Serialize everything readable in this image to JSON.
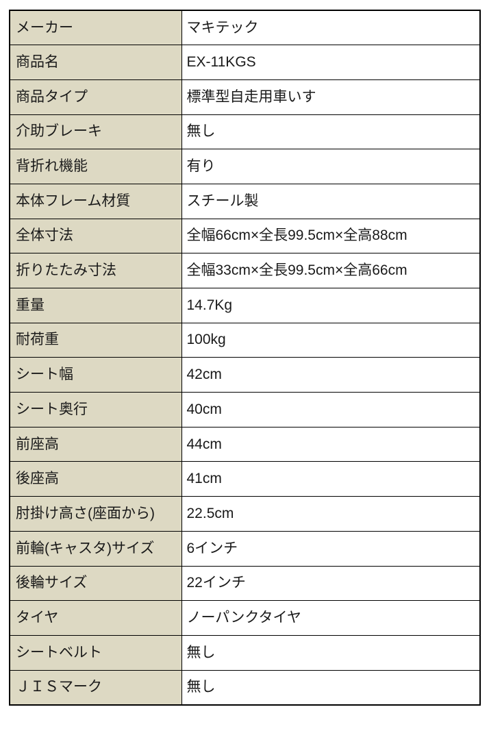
{
  "table": {
    "name": "product-spec-table",
    "columns": [
      "label",
      "value"
    ],
    "rows": [
      {
        "label": "メーカー",
        "value": "マキテック"
      },
      {
        "label": "商品名",
        "value": "EX-11KGS"
      },
      {
        "label": "商品タイプ",
        "value": "標準型自走用車いす"
      },
      {
        "label": "介助ブレーキ",
        "value": "無し"
      },
      {
        "label": "背折れ機能",
        "value": "有り"
      },
      {
        "label": "本体フレーム材質",
        "value": "スチール製"
      },
      {
        "label": "全体寸法",
        "value": "全幅66cm×全長99.5cm×全高88cm"
      },
      {
        "label": "折りたたみ寸法",
        "value": "全幅33cm×全長99.5cm×全高66cm"
      },
      {
        "label": "重量",
        "value": "14.7Kg"
      },
      {
        "label": "耐荷重",
        "value": "100kg"
      },
      {
        "label": "シート幅",
        "value": "42cm"
      },
      {
        "label": "シート奥行",
        "value": "40cm"
      },
      {
        "label": "前座高",
        "value": "44cm"
      },
      {
        "label": "後座高",
        "value": "41cm"
      },
      {
        "label": "肘掛け高さ(座面から)",
        "value": "22.5cm"
      },
      {
        "label": "前輪(キャスタ)サイズ",
        "value": "6インチ"
      },
      {
        "label": "後輪サイズ",
        "value": "22インチ"
      },
      {
        "label": "タイヤ",
        "value": "ノーパンクタイヤ"
      },
      {
        "label": "シートベルト",
        "value": "無し"
      },
      {
        "label": "ＪＩＳマーク",
        "value": "無し"
      }
    ]
  },
  "colors": {
    "label_bg": "#DDD9C3",
    "value_bg": "#FFFFFF",
    "border": "#000000",
    "text": "#1A1A1A"
  }
}
